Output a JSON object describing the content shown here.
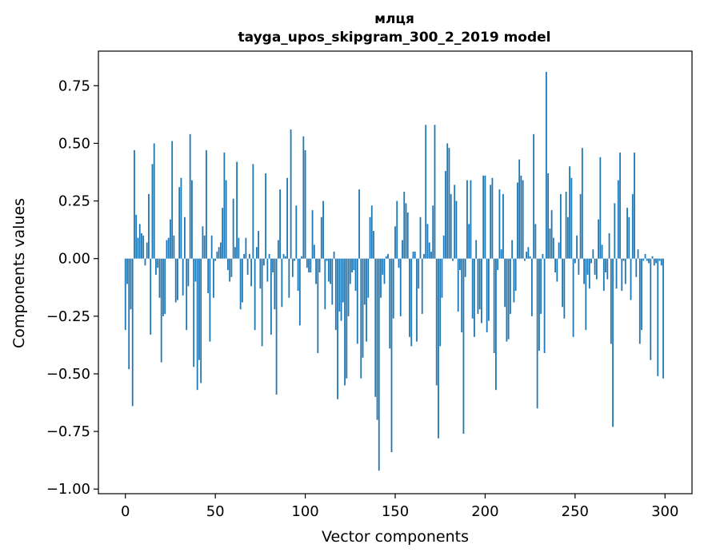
{
  "chart_data": {
    "type": "bar",
    "title": "млця",
    "subtitle": "tayga_upos_skipgram_300_2_2019 model",
    "xlabel": "Vector components",
    "ylabel": "Components values",
    "xlim": [
      -15,
      315
    ],
    "ylim": [
      -1.02,
      0.9
    ],
    "xticks": [
      0,
      50,
      100,
      150,
      200,
      250,
      300
    ],
    "xtick_labels": [
      "0",
      "50",
      "100",
      "150",
      "200",
      "250",
      "300"
    ],
    "yticks": [
      0.75,
      0.5,
      0.25,
      0.0,
      -0.25,
      -0.5,
      -0.75,
      -1.0
    ],
    "ytick_labels": [
      "0.75",
      "0.50",
      "0.25",
      "0.00",
      "−0.25",
      "−0.50",
      "−0.75",
      "−1.00"
    ],
    "color": "#1f77b4",
    "x": "indices 0..299",
    "values": [
      -0.31,
      -0.11,
      -0.48,
      -0.22,
      -0.64,
      0.47,
      0.19,
      0.09,
      0.15,
      0.11,
      0.1,
      -0.03,
      0.07,
      0.28,
      -0.33,
      0.41,
      0.5,
      -0.07,
      -0.04,
      -0.17,
      -0.45,
      -0.25,
      -0.24,
      0.08,
      0.09,
      0.17,
      0.51,
      0.1,
      -0.19,
      -0.18,
      0.31,
      0.35,
      -0.16,
      0.18,
      -0.31,
      -0.12,
      0.54,
      0.34,
      -0.47,
      -0.1,
      -0.57,
      -0.44,
      -0.54,
      0.14,
      0.1,
      0.47,
      -0.15,
      -0.36,
      0.1,
      -0.17,
      -0.01,
      0.03,
      0.05,
      0.07,
      0.22,
      0.46,
      0.34,
      -0.05,
      -0.1,
      -0.08,
      0.26,
      0.05,
      0.42,
      0.09,
      -0.22,
      -0.19,
      0.02,
      0.09,
      -0.07,
      0.02,
      -0.12,
      0.41,
      -0.31,
      0.05,
      0.12,
      -0.13,
      -0.38,
      -0.03,
      0.37,
      -0.1,
      0.02,
      -0.33,
      -0.06,
      -0.22,
      -0.59,
      0.08,
      0.3,
      -0.21,
      0.02,
      0.01,
      0.35,
      -0.17,
      0.56,
      -0.08,
      -0.01,
      0.23,
      -0.14,
      -0.29,
      0.01,
      0.53,
      0.47,
      -0.04,
      -0.06,
      -0.06,
      0.21,
      0.06,
      -0.11,
      -0.41,
      -0.06,
      0.18,
      0.25,
      -0.22,
      -0.01,
      -0.1,
      -0.11,
      -0.2,
      0.03,
      -0.31,
      -0.61,
      -0.23,
      -0.27,
      -0.19,
      -0.55,
      -0.52,
      -0.25,
      -0.11,
      -0.06,
      -0.05,
      -0.14,
      -0.37,
      0.3,
      -0.52,
      -0.43,
      -0.2,
      -0.36,
      -0.17,
      0.18,
      0.23,
      0.12,
      -0.6,
      -0.7,
      -0.92,
      -0.17,
      -0.07,
      -0.11,
      0.01,
      0.02,
      -0.39,
      -0.84,
      -0.26,
      0.14,
      0.25,
      -0.04,
      -0.25,
      0.08,
      0.29,
      0.24,
      0.2,
      -0.34,
      -0.38,
      0.03,
      0.03,
      -0.36,
      -0.13,
      0.18,
      -0.24,
      0.02,
      0.58,
      0.15,
      0.07,
      0.03,
      0.23,
      0.58,
      -0.55,
      -0.78,
      -0.38,
      -0.17,
      0.1,
      0.38,
      0.5,
      0.48,
      0.28,
      -0.01,
      0.32,
      0.25,
      -0.23,
      -0.05,
      -0.32,
      -0.76,
      -0.08,
      0.34,
      0.15,
      0.34,
      -0.26,
      -0.34,
      0.08,
      -0.24,
      -0.22,
      -0.28,
      0.36,
      0.36,
      -0.32,
      -0.27,
      0.32,
      0.35,
      -0.41,
      -0.57,
      -0.05,
      0.3,
      0.04,
      0.28,
      -0.21,
      -0.36,
      -0.35,
      -0.24,
      0.08,
      -0.19,
      -0.14,
      0.33,
      0.43,
      0.36,
      0.34,
      -0.01,
      0.03,
      0.05,
      0.01,
      -0.25,
      0.54,
      0.15,
      -0.65,
      -0.4,
      -0.24,
      0.02,
      -0.41,
      0.81,
      0.37,
      0.13,
      0.21,
      0.09,
      -0.06,
      -0.1,
      0.07,
      0.28,
      -0.21,
      -0.26,
      0.29,
      0.18,
      0.4,
      0.35,
      -0.34,
      -0.02,
      0.1,
      -0.07,
      0.28,
      0.48,
      -0.11,
      -0.31,
      -0.07,
      -0.13,
      -0.02,
      0.04,
      -0.07,
      -0.09,
      0.17,
      0.44,
      0.06,
      -0.14,
      -0.06,
      -0.09,
      0.11,
      -0.37,
      -0.73,
      0.24,
      -0.13,
      0.34,
      0.46,
      -0.14,
      -0.01,
      -0.11,
      0.22,
      0.18,
      -0.18,
      0.28,
      0.46,
      -0.08,
      0.04,
      -0.37,
      -0.31,
      -0.01,
      0.02,
      -0.01,
      -0.02,
      -0.44,
      0.01,
      -0.03,
      -0.02,
      -0.51,
      -0.01,
      -0.03,
      -0.52
    ]
  }
}
